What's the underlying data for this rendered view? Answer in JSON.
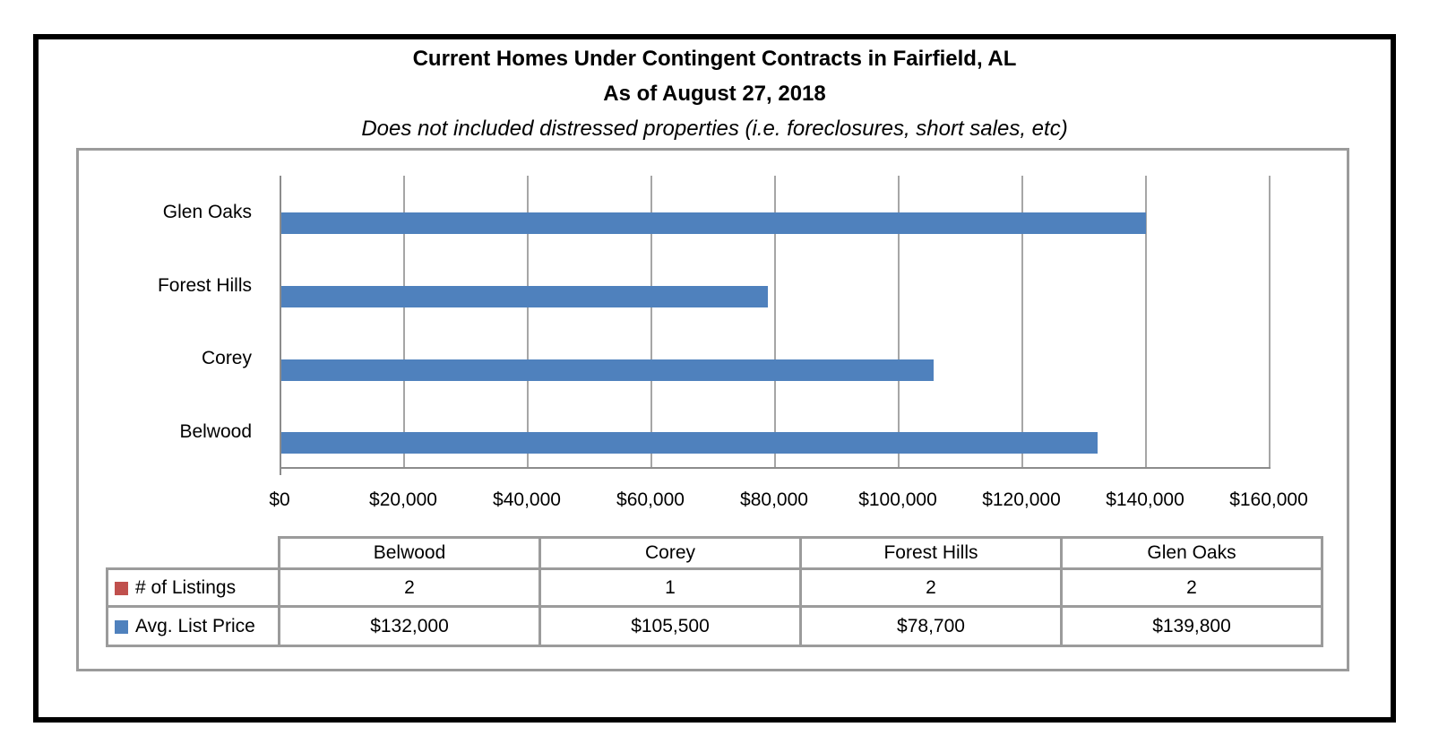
{
  "header": {
    "title": "Current Homes Under Contingent Contracts in Fairfield, AL",
    "subtitle": "As of August 27, 2018",
    "note": "Does not included distressed properties (i.e. foreclosures, short sales, etc)"
  },
  "chart_data": {
    "type": "bar",
    "orientation": "horizontal",
    "title": "Current Homes Under Contingent Contracts in Fairfield, AL",
    "subtitle": "As of August 27, 2018",
    "annotation": "Does not included distressed properties (i.e. foreclosures, short sales, etc)",
    "categories": [
      "Belwood",
      "Corey",
      "Forest Hills",
      "Glen Oaks"
    ],
    "category_axis_top_to_bottom": [
      "Glen Oaks",
      "Forest Hills",
      "Corey",
      "Belwood"
    ],
    "series": [
      {
        "name": "# of Listings",
        "color": "#C0504D",
        "values": [
          2,
          1,
          2,
          2
        ]
      },
      {
        "name": "Avg. List Price",
        "color": "#4F81BD",
        "values": [
          132000,
          105500,
          78700,
          139800
        ]
      }
    ],
    "xlabel": "",
    "ylabel": "",
    "xlim": [
      0,
      160000
    ],
    "x_tick_values": [
      0,
      20000,
      40000,
      60000,
      80000,
      100000,
      120000,
      140000,
      160000
    ],
    "x_tick_labels": [
      "$0",
      "$20,000",
      "$40,000",
      "$60,000",
      "$80,000",
      "$100,000",
      "$120,000",
      "$140,000",
      "$160,000"
    ],
    "grid": true,
    "legend_position": "in-data-table"
  },
  "data_table": {
    "columns": [
      "Belwood",
      "Corey",
      "Forest Hills",
      "Glen Oaks"
    ],
    "rows": [
      {
        "label": "# of Listings",
        "marker_color": "#C0504D",
        "values": [
          "2",
          "1",
          "2",
          "2"
        ]
      },
      {
        "label": "Avg. List Price",
        "marker_color": "#4F81BD",
        "values": [
          "$132,000",
          "$105,500",
          "$78,700",
          "$139,800"
        ]
      }
    ]
  },
  "colors": {
    "bar_blue": "#4F81BD",
    "marker_red": "#C0504D",
    "gridline": "#A6A6A6",
    "axis": "#8C8C8C",
    "border_gray": "#9B9B9B",
    "frame_black": "#000000"
  }
}
